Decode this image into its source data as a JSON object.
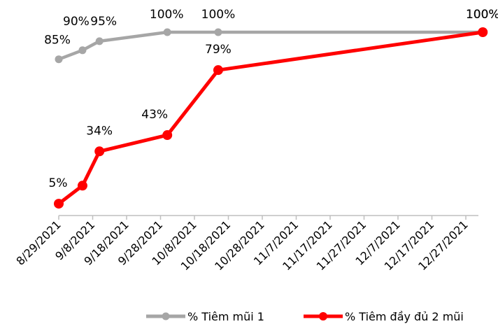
{
  "chart_data": {
    "type": "line",
    "x_ticks": [
      "8/29/2021",
      "9/8/2021",
      "9/18/2021",
      "9/28/2021",
      "10/8/2021",
      "10/18/2021",
      "10/28/2021",
      "11/7/2021",
      "11/17/2021",
      "11/27/2021",
      "12/7/2021",
      "12/17/2021",
      "12/27/2021"
    ],
    "xlim": [
      "2021-08-29",
      "2022-01-01"
    ],
    "ylim": [
      0,
      1
    ],
    "grid": false,
    "legend_position": "bottom",
    "series": [
      {
        "name": "% Tiêm mũi 1",
        "color": "#a6a6a6",
        "points": [
          {
            "x": "2021-08-29",
            "y": 0.85,
            "label": "85%"
          },
          {
            "x": "2021-09-05",
            "y": 0.9,
            "label": "90%"
          },
          {
            "x": "2021-09-10",
            "y": 0.95,
            "label": "95%"
          },
          {
            "x": "2021-09-30",
            "y": 1.0,
            "label": "100%"
          },
          {
            "x": "2021-10-15",
            "y": 1.0,
            "label": "100%"
          },
          {
            "x": "2022-01-01",
            "y": 1.0,
            "label": "100%"
          }
        ]
      },
      {
        "name": "% Tiêm đầy đủ 2 mũi",
        "color": "#ff0000",
        "points": [
          {
            "x": "2021-08-29",
            "y": 0.05,
            "label": "5%"
          },
          {
            "x": "2021-09-05",
            "y": 0.15,
            "label": ""
          },
          {
            "x": "2021-09-10",
            "y": 0.34,
            "label": "34%"
          },
          {
            "x": "2021-09-30",
            "y": 0.43,
            "label": "43%"
          },
          {
            "x": "2021-10-15",
            "y": 0.79,
            "label": "79%"
          },
          {
            "x": "2022-01-01",
            "y": 1.0,
            "label": "100%"
          }
        ]
      }
    ]
  }
}
